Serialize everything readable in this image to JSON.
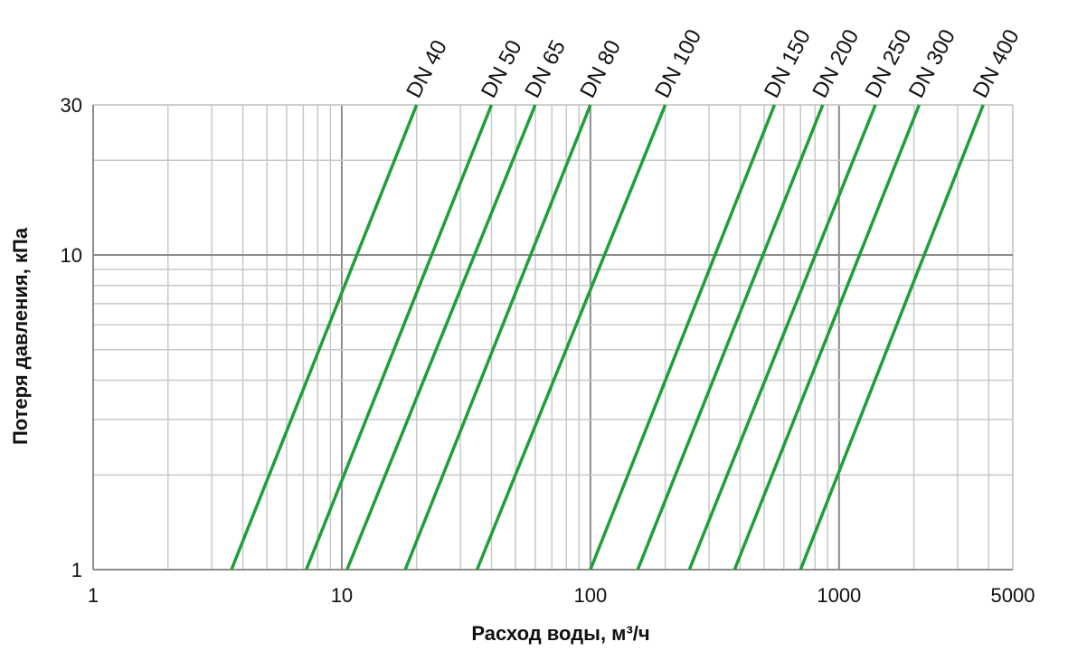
{
  "chart_data": {
    "type": "line",
    "title": "",
    "xlabel": "Расход воды, м³/ч",
    "ylabel": "Потеря давления, кПа",
    "x_scale": "log",
    "y_scale": "log",
    "xlim": [
      1,
      5000
    ],
    "ylim": [
      1,
      30
    ],
    "x_ticks": [
      1,
      10,
      100,
      1000,
      5000
    ],
    "x_tick_labels": [
      "1",
      "10",
      "100",
      "1000",
      "5000"
    ],
    "y_ticks": [
      1,
      10,
      30
    ],
    "y_tick_labels": [
      "1",
      "10",
      "30"
    ],
    "grid": true,
    "legend": "none",
    "line_color": "#1f9e3a",
    "series": [
      {
        "name": "DN 40",
        "x": [
          3.6,
          20
        ],
        "y": [
          1,
          30
        ]
      },
      {
        "name": "DN 50",
        "x": [
          7.2,
          40
        ],
        "y": [
          1,
          30
        ]
      },
      {
        "name": "DN 65",
        "x": [
          10.5,
          60
        ],
        "y": [
          1,
          30
        ]
      },
      {
        "name": "DN 80",
        "x": [
          18,
          100
        ],
        "y": [
          1,
          30
        ]
      },
      {
        "name": "DN 100",
        "x": [
          35,
          200
        ],
        "y": [
          1,
          30
        ]
      },
      {
        "name": "DN 150",
        "x": [
          100,
          550
        ],
        "y": [
          1,
          30
        ]
      },
      {
        "name": "DN 200",
        "x": [
          155,
          860
        ],
        "y": [
          1,
          30
        ]
      },
      {
        "name": "DN 250",
        "x": [
          250,
          1400
        ],
        "y": [
          1,
          30
        ]
      },
      {
        "name": "DN 300",
        "x": [
          380,
          2100
        ],
        "y": [
          1,
          30
        ]
      },
      {
        "name": "DN 400",
        "x": [
          700,
          3800
        ],
        "y": [
          1,
          30
        ]
      }
    ]
  }
}
